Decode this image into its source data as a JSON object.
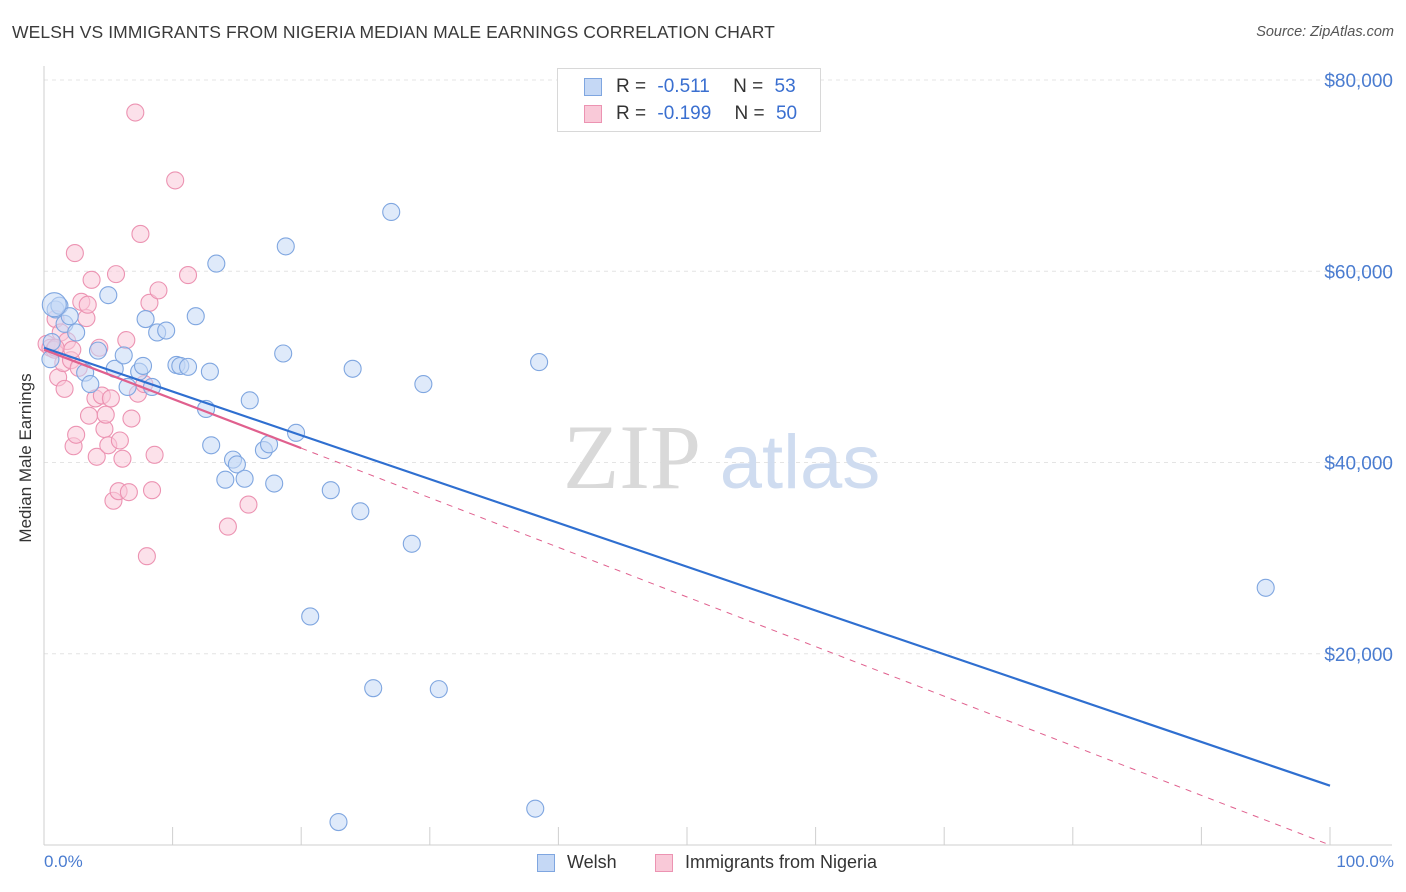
{
  "header": {
    "title": "WELSH VS IMMIGRANTS FROM NIGERIA MEDIAN MALE EARNINGS CORRELATION CHART",
    "source": "Source: ZipAtlas.com"
  },
  "watermark": {
    "part1": "ZIP",
    "part2": "atlas"
  },
  "legend_top": {
    "r_label": "R =",
    "n_label": "N =",
    "rows": [
      {
        "r": "-0.511",
        "n": "53"
      },
      {
        "r": "-0.199",
        "n": "50"
      }
    ]
  },
  "colors": {
    "welsh_fill": "#c5d8f5",
    "welsh_stroke": "#7fa6e0",
    "welsh_line": "#2f6fd0",
    "nigeria_fill": "#f9c9d8",
    "nigeria_stroke": "#ec93b2",
    "nigeria_line": "#e0608e",
    "tick_label": "#4a7cd0",
    "grid": "#e4e4e4"
  },
  "chart_data": {
    "type": "scatter",
    "title": "WELSH VS IMMIGRANTS FROM NIGERIA MEDIAN MALE EARNINGS CORRELATION CHART",
    "xlabel": "",
    "ylabel": "Median Male Earnings",
    "xlim": [
      0,
      100
    ],
    "ylim": [
      0,
      80000
    ],
    "x_tick_labels": [
      "0.0%",
      "100.0%"
    ],
    "y_ticks": [
      20000,
      40000,
      60000,
      80000
    ],
    "y_tick_labels": [
      "$20,000",
      "$40,000",
      "$60,000",
      "$80,000"
    ],
    "grid": true,
    "series": [
      {
        "name": "Welsh",
        "points": [
          [
            0.5,
            50800
          ],
          [
            0.6,
            52600
          ],
          [
            0.9,
            56000
          ],
          [
            1.2,
            56400
          ],
          [
            1.6,
            54500
          ],
          [
            2.0,
            55300
          ],
          [
            2.5,
            53600
          ],
          [
            3.2,
            49400
          ],
          [
            3.6,
            48200
          ],
          [
            4.2,
            51700
          ],
          [
            5.0,
            57500
          ],
          [
            5.5,
            49800
          ],
          [
            6.2,
            51200
          ],
          [
            6.5,
            47900
          ],
          [
            7.4,
            49500
          ],
          [
            7.7,
            50100
          ],
          [
            8.4,
            47900
          ],
          [
            7.9,
            55000
          ],
          [
            8.8,
            53600
          ],
          [
            9.5,
            53800
          ],
          [
            10.3,
            50200
          ],
          [
            10.6,
            50100
          ],
          [
            11.2,
            50000
          ],
          [
            11.8,
            55300
          ],
          [
            12.6,
            45600
          ],
          [
            12.9,
            49500
          ],
          [
            13.0,
            41800
          ],
          [
            13.4,
            60800
          ],
          [
            14.1,
            38200
          ],
          [
            14.7,
            40300
          ],
          [
            15.0,
            39800
          ],
          [
            15.6,
            38300
          ],
          [
            16.0,
            46500
          ],
          [
            17.1,
            41300
          ],
          [
            17.5,
            41900
          ],
          [
            17.9,
            37800
          ],
          [
            18.6,
            51400
          ],
          [
            18.8,
            62600
          ],
          [
            19.6,
            43100
          ],
          [
            20.7,
            23900
          ],
          [
            22.3,
            37100
          ],
          [
            22.9,
            2400
          ],
          [
            24.0,
            49800
          ],
          [
            24.6,
            34900
          ],
          [
            25.6,
            16400
          ],
          [
            27.0,
            66200
          ],
          [
            28.6,
            31500
          ],
          [
            29.5,
            48200
          ],
          [
            30.7,
            16300
          ],
          [
            38.2,
            3800
          ],
          [
            38.5,
            50500
          ],
          [
            95.0,
            26900
          ],
          [
            0.8,
            56500
          ]
        ]
      },
      {
        "name": "Immigrants from Nigeria",
        "points": [
          [
            0.2,
            52400
          ],
          [
            0.5,
            52000
          ],
          [
            0.8,
            51800
          ],
          [
            0.9,
            55000
          ],
          [
            1.1,
            48900
          ],
          [
            1.3,
            53600
          ],
          [
            1.5,
            50400
          ],
          [
            1.6,
            47700
          ],
          [
            1.8,
            52700
          ],
          [
            2.1,
            50700
          ],
          [
            2.2,
            51800
          ],
          [
            2.3,
            41700
          ],
          [
            2.4,
            61900
          ],
          [
            2.5,
            42900
          ],
          [
            2.9,
            56800
          ],
          [
            3.3,
            55100
          ],
          [
            3.4,
            56500
          ],
          [
            3.5,
            44900
          ],
          [
            3.7,
            59100
          ],
          [
            4.0,
            46700
          ],
          [
            4.1,
            40600
          ],
          [
            4.3,
            52000
          ],
          [
            4.5,
            47000
          ],
          [
            4.7,
            43500
          ],
          [
            4.8,
            45000
          ],
          [
            5.0,
            41800
          ],
          [
            5.2,
            46700
          ],
          [
            5.4,
            36000
          ],
          [
            5.6,
            59700
          ],
          [
            5.8,
            37000
          ],
          [
            5.9,
            42300
          ],
          [
            6.1,
            40400
          ],
          [
            6.4,
            52800
          ],
          [
            6.6,
            36900
          ],
          [
            6.8,
            44600
          ],
          [
            7.1,
            76600
          ],
          [
            7.3,
            47200
          ],
          [
            7.5,
            63900
          ],
          [
            7.8,
            48200
          ],
          [
            8.0,
            30200
          ],
          [
            8.2,
            56700
          ],
          [
            8.4,
            37100
          ],
          [
            8.6,
            40800
          ],
          [
            8.9,
            58000
          ],
          [
            10.2,
            69500
          ],
          [
            11.2,
            59600
          ],
          [
            14.3,
            33300
          ],
          [
            15.9,
            35600
          ],
          [
            0.9,
            52000
          ],
          [
            2.7,
            49900
          ]
        ]
      }
    ],
    "trend_lines": [
      {
        "series": "Welsh",
        "style": "solid",
        "from": [
          0,
          52000
        ],
        "to": [
          100,
          6200
        ]
      },
      {
        "series": "Immigrants from Nigeria",
        "style": "solid",
        "from": [
          0,
          51800
        ],
        "to": [
          20,
          41500
        ]
      },
      {
        "series": "Immigrants from Nigeria",
        "style": "dashed",
        "from": [
          20,
          41500
        ],
        "to": [
          100,
          0
        ]
      }
    ]
  },
  "legend_bottom": {
    "items": [
      {
        "label": "Welsh"
      },
      {
        "label": "Immigrants from Nigeria"
      }
    ]
  }
}
